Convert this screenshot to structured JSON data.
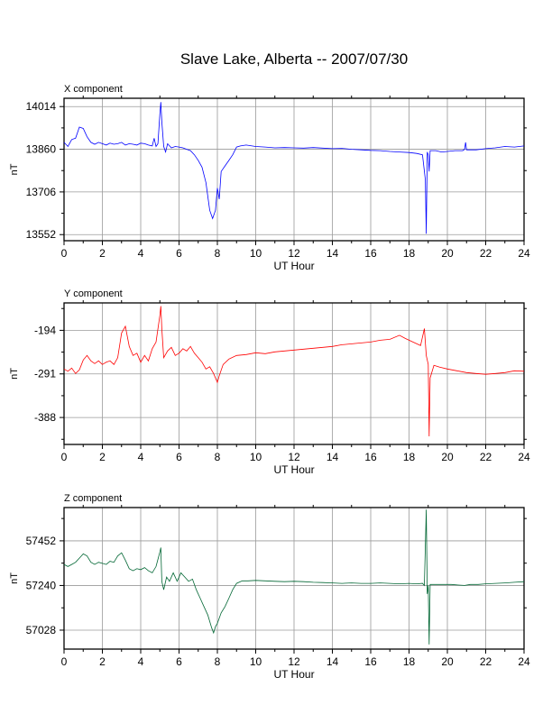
{
  "title": "Slave Lake, Alberta -- 2007/07/30",
  "chart_data": [
    {
      "type": "line",
      "panel_title": "X component",
      "xlabel": "UT Hour",
      "ylabel": "nT",
      "xlim": [
        0,
        24
      ],
      "ylim": [
        13530,
        14044
      ],
      "x_ticks": [
        0,
        2,
        4,
        6,
        8,
        10,
        12,
        14,
        16,
        18,
        20,
        22,
        24
      ],
      "y_ticks": [
        13552,
        13706,
        13860,
        14014
      ],
      "grid": true,
      "color": "#0000ff",
      "points": [
        [
          0.0,
          13885
        ],
        [
          0.2,
          13870
        ],
        [
          0.4,
          13895
        ],
        [
          0.6,
          13900
        ],
        [
          0.8,
          13940
        ],
        [
          1.0,
          13935
        ],
        [
          1.2,
          13905
        ],
        [
          1.4,
          13885
        ],
        [
          1.6,
          13878
        ],
        [
          1.8,
          13885
        ],
        [
          2.0,
          13880
        ],
        [
          2.2,
          13875
        ],
        [
          2.4,
          13882
        ],
        [
          2.6,
          13878
        ],
        [
          2.8,
          13880
        ],
        [
          3.0,
          13885
        ],
        [
          3.2,
          13875
        ],
        [
          3.4,
          13880
        ],
        [
          3.6,
          13878
        ],
        [
          3.8,
          13875
        ],
        [
          4.0,
          13882
        ],
        [
          4.2,
          13880
        ],
        [
          4.4,
          13875
        ],
        [
          4.6,
          13872
        ],
        [
          4.7,
          13900
        ],
        [
          4.8,
          13870
        ],
        [
          4.9,
          13880
        ],
        [
          5.0,
          13990
        ],
        [
          5.05,
          14030
        ],
        [
          5.1,
          13960
        ],
        [
          5.2,
          13870
        ],
        [
          5.3,
          13850
        ],
        [
          5.4,
          13880
        ],
        [
          5.6,
          13865
        ],
        [
          5.8,
          13870
        ],
        [
          6.0,
          13868
        ],
        [
          6.2,
          13865
        ],
        [
          6.4,
          13860
        ],
        [
          6.6,
          13855
        ],
        [
          6.8,
          13840
        ],
        [
          7.0,
          13820
        ],
        [
          7.2,
          13795
        ],
        [
          7.4,
          13740
        ],
        [
          7.6,
          13640
        ],
        [
          7.75,
          13610
        ],
        [
          7.9,
          13640
        ],
        [
          8.0,
          13720
        ],
        [
          8.1,
          13680
        ],
        [
          8.2,
          13780
        ],
        [
          8.4,
          13800
        ],
        [
          8.6,
          13820
        ],
        [
          8.8,
          13840
        ],
        [
          9.0,
          13868
        ],
        [
          9.2,
          13872
        ],
        [
          9.5,
          13875
        ],
        [
          10.0,
          13870
        ],
        [
          10.5,
          13868
        ],
        [
          11.0,
          13865
        ],
        [
          11.5,
          13866
        ],
        [
          12.0,
          13865
        ],
        [
          12.5,
          13864
        ],
        [
          13.0,
          13866
        ],
        [
          13.5,
          13864
        ],
        [
          14.0,
          13862
        ],
        [
          14.5,
          13863
        ],
        [
          15.0,
          13860
        ],
        [
          15.5,
          13858
        ],
        [
          16.0,
          13856
        ],
        [
          16.5,
          13855
        ],
        [
          17.0,
          13852
        ],
        [
          17.5,
          13850
        ],
        [
          18.0,
          13848
        ],
        [
          18.4,
          13845
        ],
        [
          18.7,
          13840
        ],
        [
          18.85,
          13750
        ],
        [
          18.9,
          13555
        ],
        [
          18.95,
          13850
        ],
        [
          19.0,
          13840
        ],
        [
          19.05,
          13780
        ],
        [
          19.1,
          13855
        ],
        [
          19.4,
          13855
        ],
        [
          19.7,
          13850
        ],
        [
          20.0,
          13852
        ],
        [
          20.4,
          13855
        ],
        [
          20.8,
          13855
        ],
        [
          20.9,
          13860
        ],
        [
          20.95,
          13885
        ],
        [
          21.0,
          13858
        ],
        [
          21.5,
          13858
        ],
        [
          22.0,
          13862
        ],
        [
          22.5,
          13865
        ],
        [
          23.0,
          13870
        ],
        [
          23.5,
          13868
        ],
        [
          24.0,
          13872
        ]
      ]
    },
    {
      "type": "line",
      "panel_title": "Y component",
      "xlabel": "UT Hour",
      "ylabel": "nT",
      "xlim": [
        0,
        24
      ],
      "ylim": [
        -448,
        -133
      ],
      "x_ticks": [
        0,
        2,
        4,
        6,
        8,
        10,
        12,
        14,
        16,
        18,
        20,
        22,
        24
      ],
      "y_ticks": [
        -194,
        -291,
        -388
      ],
      "grid": true,
      "color": "#ff0000",
      "points": [
        [
          0.0,
          -280
        ],
        [
          0.2,
          -285
        ],
        [
          0.4,
          -278
        ],
        [
          0.6,
          -290
        ],
        [
          0.8,
          -282
        ],
        [
          1.0,
          -260
        ],
        [
          1.2,
          -250
        ],
        [
          1.4,
          -262
        ],
        [
          1.6,
          -268
        ],
        [
          1.8,
          -262
        ],
        [
          2.0,
          -270
        ],
        [
          2.2,
          -265
        ],
        [
          2.4,
          -262
        ],
        [
          2.6,
          -270
        ],
        [
          2.8,
          -255
        ],
        [
          3.0,
          -200
        ],
        [
          3.2,
          -185
        ],
        [
          3.4,
          -230
        ],
        [
          3.6,
          -250
        ],
        [
          3.8,
          -245
        ],
        [
          4.0,
          -265
        ],
        [
          4.2,
          -250
        ],
        [
          4.4,
          -262
        ],
        [
          4.6,
          -235
        ],
        [
          4.8,
          -220
        ],
        [
          5.0,
          -160
        ],
        [
          5.05,
          -140
        ],
        [
          5.1,
          -190
        ],
        [
          5.2,
          -255
        ],
        [
          5.4,
          -240
        ],
        [
          5.6,
          -232
        ],
        [
          5.8,
          -250
        ],
        [
          6.0,
          -245
        ],
        [
          6.2,
          -235
        ],
        [
          6.4,
          -240
        ],
        [
          6.6,
          -230
        ],
        [
          6.8,
          -245
        ],
        [
          7.0,
          -255
        ],
        [
          7.2,
          -265
        ],
        [
          7.4,
          -280
        ],
        [
          7.6,
          -275
        ],
        [
          7.8,
          -290
        ],
        [
          8.0,
          -310
        ],
        [
          8.1,
          -295
        ],
        [
          8.3,
          -270
        ],
        [
          8.6,
          -258
        ],
        [
          9.0,
          -250
        ],
        [
          9.5,
          -248
        ],
        [
          10.0,
          -244
        ],
        [
          10.5,
          -246
        ],
        [
          11.0,
          -242
        ],
        [
          11.5,
          -240
        ],
        [
          12.0,
          -238
        ],
        [
          12.5,
          -236
        ],
        [
          13.0,
          -234
        ],
        [
          13.5,
          -232
        ],
        [
          14.0,
          -230
        ],
        [
          14.5,
          -226
        ],
        [
          15.0,
          -224
        ],
        [
          15.5,
          -222
        ],
        [
          16.0,
          -220
        ],
        [
          16.5,
          -216
        ],
        [
          17.0,
          -214
        ],
        [
          17.5,
          -205
        ],
        [
          17.8,
          -212
        ],
        [
          18.2,
          -220
        ],
        [
          18.6,
          -228
        ],
        [
          18.8,
          -190
        ],
        [
          18.9,
          -250
        ],
        [
          19.0,
          -270
        ],
        [
          19.05,
          -430
        ],
        [
          19.1,
          -300
        ],
        [
          19.3,
          -272
        ],
        [
          19.6,
          -276
        ],
        [
          20.0,
          -280
        ],
        [
          20.5,
          -284
        ],
        [
          21.0,
          -288
        ],
        [
          21.5,
          -290
        ],
        [
          22.0,
          -292
        ],
        [
          22.5,
          -290
        ],
        [
          23.0,
          -288
        ],
        [
          23.5,
          -284
        ],
        [
          24.0,
          -285
        ]
      ]
    },
    {
      "type": "line",
      "panel_title": "Z component",
      "xlabel": "UT Hour",
      "ylabel": "nT",
      "xlim": [
        0,
        24
      ],
      "ylim": [
        56938,
        57610
      ],
      "x_ticks": [
        0,
        2,
        4,
        6,
        8,
        10,
        12,
        14,
        16,
        18,
        20,
        22,
        24
      ],
      "y_ticks": [
        57028,
        57240,
        57452
      ],
      "grid": true,
      "color": "#006633",
      "points": [
        [
          0.0,
          57340
        ],
        [
          0.2,
          57330
        ],
        [
          0.4,
          57340
        ],
        [
          0.6,
          57350
        ],
        [
          0.8,
          57370
        ],
        [
          1.0,
          57390
        ],
        [
          1.2,
          57380
        ],
        [
          1.4,
          57350
        ],
        [
          1.6,
          57340
        ],
        [
          1.8,
          57350
        ],
        [
          2.0,
          57345
        ],
        [
          2.2,
          57340
        ],
        [
          2.4,
          57355
        ],
        [
          2.6,
          57350
        ],
        [
          2.8,
          57380
        ],
        [
          3.0,
          57395
        ],
        [
          3.2,
          57360
        ],
        [
          3.4,
          57320
        ],
        [
          3.6,
          57310
        ],
        [
          3.8,
          57320
        ],
        [
          4.0,
          57315
        ],
        [
          4.2,
          57325
        ],
        [
          4.4,
          57310
        ],
        [
          4.6,
          57300
        ],
        [
          4.8,
          57330
        ],
        [
          5.0,
          57400
        ],
        [
          5.05,
          57420
        ],
        [
          5.1,
          57260
        ],
        [
          5.2,
          57220
        ],
        [
          5.35,
          57280
        ],
        [
          5.5,
          57260
        ],
        [
          5.7,
          57300
        ],
        [
          5.9,
          57260
        ],
        [
          6.1,
          57300
        ],
        [
          6.3,
          57280
        ],
        [
          6.5,
          57260
        ],
        [
          6.7,
          57270
        ],
        [
          6.9,
          57220
        ],
        [
          7.1,
          57180
        ],
        [
          7.3,
          57140
        ],
        [
          7.5,
          57100
        ],
        [
          7.7,
          57040
        ],
        [
          7.8,
          57015
        ],
        [
          7.9,
          57045
        ],
        [
          8.0,
          57060
        ],
        [
          8.2,
          57110
        ],
        [
          8.4,
          57140
        ],
        [
          8.6,
          57180
        ],
        [
          8.8,
          57220
        ],
        [
          9.0,
          57250
        ],
        [
          9.3,
          57262
        ],
        [
          9.6,
          57262
        ],
        [
          10.0,
          57264
        ],
        [
          10.5,
          57262
        ],
        [
          11.0,
          57260
        ],
        [
          11.5,
          57258
        ],
        [
          12.0,
          57260
        ],
        [
          12.5,
          57258
        ],
        [
          13.0,
          57255
        ],
        [
          13.5,
          57254
        ],
        [
          14.0,
          57252
        ],
        [
          14.5,
          57250
        ],
        [
          15.0,
          57252
        ],
        [
          15.5,
          57250
        ],
        [
          16.0,
          57250
        ],
        [
          16.5,
          57252
        ],
        [
          17.0,
          57250
        ],
        [
          17.5,
          57248
        ],
        [
          18.0,
          57250
        ],
        [
          18.4,
          57248
        ],
        [
          18.7,
          57250
        ],
        [
          18.8,
          57240
        ],
        [
          18.9,
          57600
        ],
        [
          18.95,
          57200
        ],
        [
          19.0,
          57240
        ],
        [
          19.05,
          56960
        ],
        [
          19.1,
          57245
        ],
        [
          19.4,
          57245
        ],
        [
          19.8,
          57245
        ],
        [
          20.2,
          57245
        ],
        [
          20.6,
          57242
        ],
        [
          20.9,
          57240
        ],
        [
          21.2,
          57245
        ],
        [
          21.6,
          57245
        ],
        [
          22.0,
          57248
        ],
        [
          22.5,
          57250
        ],
        [
          23.0,
          57252
        ],
        [
          23.5,
          57255
        ],
        [
          24.0,
          57258
        ]
      ]
    }
  ]
}
